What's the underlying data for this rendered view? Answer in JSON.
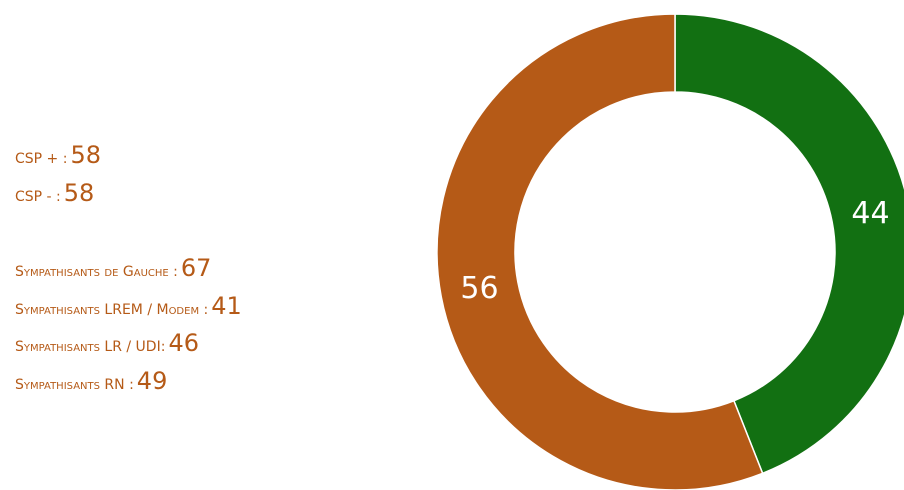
{
  "chart_data": {
    "type": "donut",
    "values": [
      44,
      56
    ],
    "colors": [
      "#127012",
      "#b55a17"
    ],
    "annotations": [
      [
        {
          "label": "CSP + :",
          "value": 58
        },
        {
          "label": "CSP - :",
          "value": 58
        }
      ],
      [
        {
          "label": "Sympathisants de Gauche :",
          "value": 67
        },
        {
          "label": "Sympathisants LREM / Modem :",
          "value": 41
        },
        {
          "label": "Sympathisants LR / UDI:",
          "value": 46
        },
        {
          "label": "Sympathisants RN :",
          "value": 49
        }
      ]
    ]
  }
}
